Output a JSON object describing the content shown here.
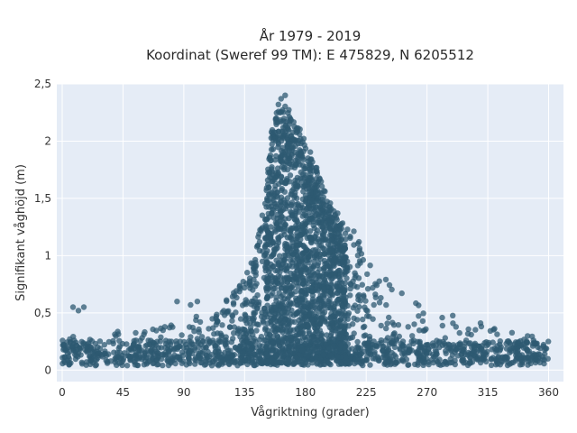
{
  "chart_data": {
    "type": "scatter",
    "title": "År 1979 - 2019",
    "subtitle": "Koordinat (Sweref 99 TM): E 475829, N 6205512",
    "xlabel": "Vågriktning (grader)",
    "ylabel": "Signifikant våghöjd (m)",
    "xlim": [
      -4,
      371
    ],
    "ylim": [
      -0.1,
      2.5
    ],
    "xticks": [
      0,
      45,
      90,
      135,
      180,
      225,
      270,
      315,
      360
    ],
    "xtick_labels": [
      "0",
      "45",
      "90",
      "135",
      "180",
      "225",
      "270",
      "315",
      "360"
    ],
    "yticks": [
      0,
      0.5,
      1,
      1.5,
      2,
      2.5
    ],
    "ytick_labels": [
      "0",
      "0,5",
      "1",
      "1,5",
      "2",
      "2,5"
    ],
    "grid": true,
    "point_color": "#2e5a72",
    "background": "#e5ecf6",
    "envelope": {
      "description_units": "upper envelope of significant wave height by wave direction",
      "x": [
        0,
        20,
        45,
        90,
        110,
        130,
        140,
        150,
        155,
        160,
        165,
        170,
        180,
        190,
        200,
        210,
        220,
        230,
        240,
        250,
        260,
        270,
        290,
        315,
        340,
        360
      ],
      "y": [
        0.3,
        0.32,
        0.35,
        0.42,
        0.55,
        0.72,
        0.95,
        1.45,
        2.15,
        2.3,
        2.35,
        2.28,
        2.0,
        1.75,
        1.45,
        1.3,
        1.15,
        1.0,
        0.85,
        0.7,
        0.62,
        0.55,
        0.48,
        0.4,
        0.32,
        0.28
      ]
    },
    "notable_points": {
      "x": [
        8,
        12,
        16,
        85,
        95,
        100,
        160,
        162,
        165
      ],
      "y": [
        0.55,
        0.52,
        0.55,
        0.6,
        0.57,
        0.6,
        2.32,
        2.37,
        2.4
      ]
    }
  }
}
